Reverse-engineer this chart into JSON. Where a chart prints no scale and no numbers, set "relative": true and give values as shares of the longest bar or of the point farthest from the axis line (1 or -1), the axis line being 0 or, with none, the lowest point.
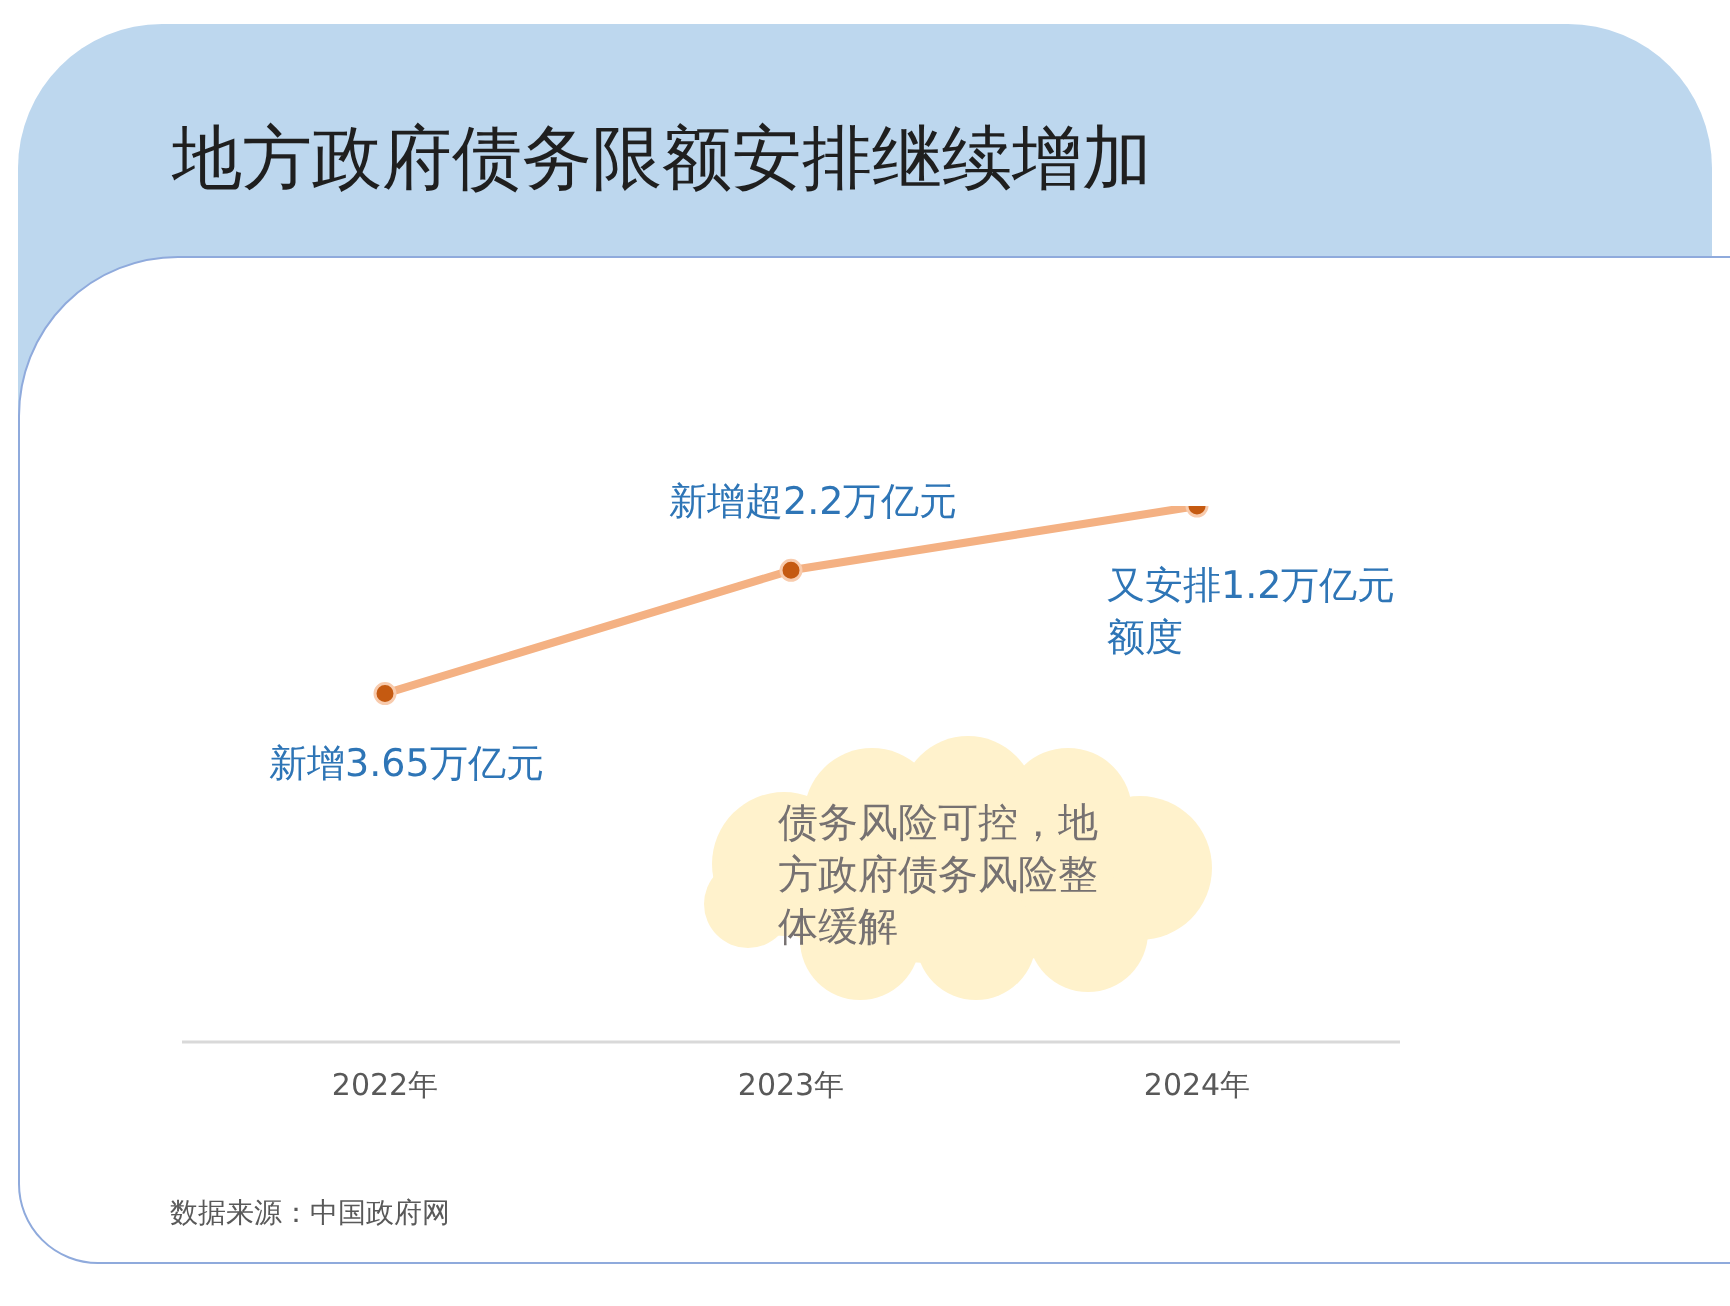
{
  "chart_data": {
    "type": "line",
    "title": "地方政府债务限额安排继续增加",
    "categories": [
      "2022年",
      "2023年",
      "2024年"
    ],
    "relative": true,
    "series": [
      {
        "color": "#f4b183",
        "values": [
          0.65,
          0.88,
          1
        ]
      }
    ],
    "marker": "circle",
    "line_style": "solid",
    "annotations": [
      {
        "text": "新增3.65万亿元",
        "x": "2022年",
        "y": 0.65
      },
      {
        "text": "新增超2.2万亿元",
        "x": "2023年",
        "y": 0.88
      },
      {
        "text": "又安排1.2万亿元额度",
        "x": "2024年",
        "y": 1
      },
      "债务风险可控，地方政府债务风险整体缓解",
      "数据来源：中国政府网"
    ]
  }
}
